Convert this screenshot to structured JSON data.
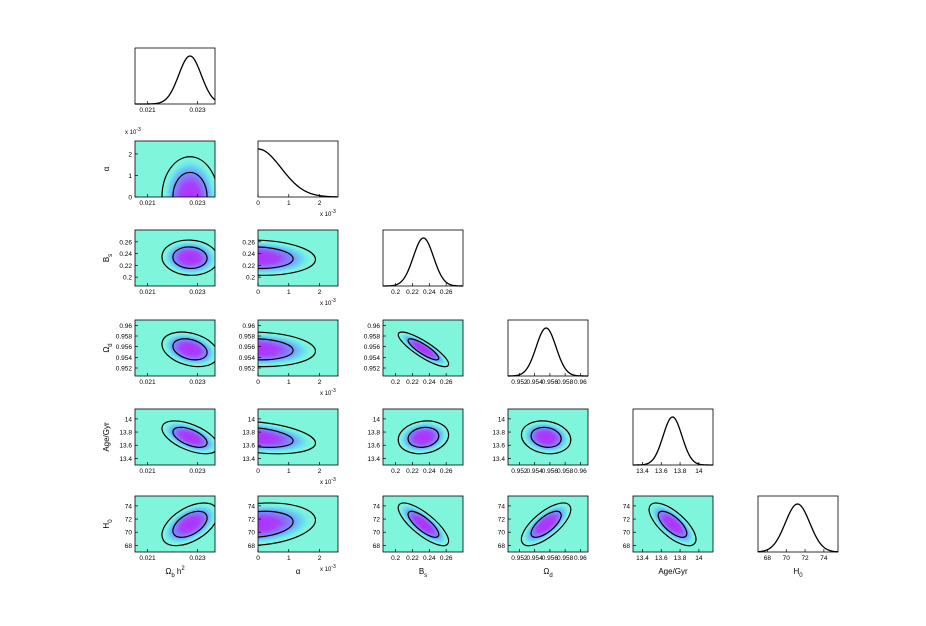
{
  "figure": {
    "colors": {
      "panel_bg": "#7ff5dc",
      "core": "#b030ff",
      "contour": "#000000",
      "line": "#000000"
    }
  },
  "chart_data": {
    "type": "triangle",
    "parameters": [
      {
        "id": "omb",
        "label": "Ω",
        "sub": "b",
        "suffix": " h",
        "sup": "2",
        "range": [
          0.0205,
          0.0237
        ],
        "ticks": [
          0.021,
          0.023
        ],
        "tick_labels": [
          "0.021",
          "0.023"
        ],
        "mean": 0.0227,
        "sigma": 0.00045
      },
      {
        "id": "alpha",
        "label": "α",
        "sub": "",
        "suffix": "",
        "sup": "",
        "range": [
          0,
          2.6
        ],
        "ticks": [
          0,
          1,
          2
        ],
        "tick_labels": [
          "0",
          "1",
          "2"
        ],
        "scale_note": "x 10",
        "scale_exp": "-3",
        "mean": 0,
        "sigma": 0.75
      },
      {
        "id": "bs",
        "label": "B",
        "sub": "s",
        "suffix": "",
        "sup": "",
        "range": [
          0.185,
          0.28
        ],
        "ticks": [
          0.2,
          0.22,
          0.24,
          0.26
        ],
        "tick_labels": [
          "0.2",
          "0.22",
          "0.24",
          "0.26"
        ],
        "mean": 0.233,
        "sigma": 0.012
      },
      {
        "id": "omd",
        "label": "Ω",
        "sub": "d",
        "suffix": "",
        "sup": "",
        "range": [
          0.9505,
          0.961
        ],
        "ticks": [
          0.952,
          0.954,
          0.956,
          0.958,
          0.96
        ],
        "tick_labels": [
          "0.952",
          "0.954",
          "0.956",
          "0.958",
          "0.96"
        ],
        "mean": 0.9555,
        "sigma": 0.0013
      },
      {
        "id": "age",
        "label": "Age/Gyr",
        "sub": "",
        "suffix": "",
        "sup": "",
        "range": [
          13.3,
          14.15
        ],
        "ticks": [
          13.4,
          13.6,
          13.8,
          14
        ],
        "tick_labels": [
          "13.4",
          "13.6",
          "13.8",
          "14"
        ],
        "mean": 13.72,
        "sigma": 0.1
      },
      {
        "id": "h0",
        "label": "H",
        "sub": "0",
        "suffix": "",
        "sup": "",
        "range": [
          67,
          75.5
        ],
        "ticks": [
          68,
          70,
          72,
          74
        ],
        "tick_labels": [
          "68",
          "70",
          "72",
          "74"
        ],
        "mean": 71.2,
        "sigma": 1.3
      }
    ],
    "correlations": [
      [
        1,
        0,
        -0.05,
        -0.3,
        -0.55,
        0.5
      ],
      [
        0,
        1,
        -0.1,
        -0.1,
        -0.35,
        0.2
      ],
      [
        -0.05,
        -0.1,
        1,
        -0.85,
        0.15,
        -0.78
      ],
      [
        -0.3,
        -0.1,
        -0.85,
        1,
        -0.15,
        0.7
      ],
      [
        -0.55,
        -0.35,
        0.15,
        -0.15,
        1,
        -0.7
      ],
      [
        0.5,
        0.2,
        -0.78,
        0.7,
        -0.7,
        1
      ]
    ],
    "contour_levels_sigma": [
      1.52,
      2.49
    ],
    "grid": false,
    "legend": "none"
  }
}
